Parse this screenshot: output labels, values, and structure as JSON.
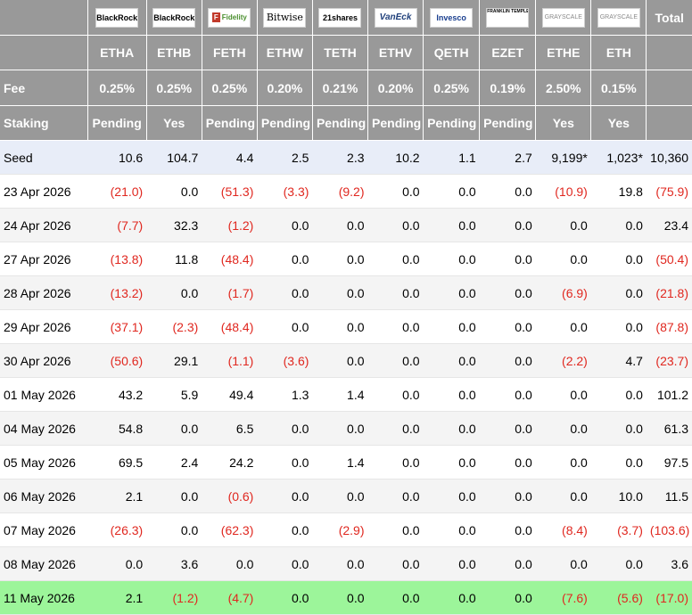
{
  "columns": [
    {
      "issuer": "BlackRock",
      "symbol": "ETHA",
      "fee": "0.25%",
      "staking": "Pending"
    },
    {
      "issuer": "BlackRock",
      "symbol": "ETHB",
      "fee": "0.25%",
      "staking": "Yes"
    },
    {
      "issuer": "Fidelity",
      "symbol": "FETH",
      "fee": "0.25%",
      "staking": "Pending"
    },
    {
      "issuer": "Bitwise",
      "symbol": "ETHW",
      "fee": "0.20%",
      "staking": "Pending"
    },
    {
      "issuer": "21shares",
      "symbol": "TETH",
      "fee": "0.21%",
      "staking": "Pending"
    },
    {
      "issuer": "VanEck",
      "symbol": "ETHV",
      "fee": "0.20%",
      "staking": "Pending"
    },
    {
      "issuer": "Invesco",
      "symbol": "QETH",
      "fee": "0.25%",
      "staking": "Pending"
    },
    {
      "issuer": "FRANKLIN TEMPLETON",
      "symbol": "EZET",
      "fee": "0.19%",
      "staking": "Pending"
    },
    {
      "issuer": "GRAYSCALE",
      "symbol": "ETHE",
      "fee": "2.50%",
      "staking": "Yes"
    },
    {
      "issuer": "GRAYSCALE",
      "symbol": "ETH",
      "fee": "0.15%",
      "staking": "Yes"
    }
  ],
  "header": {
    "total_label": "Total",
    "fee_label": "Fee",
    "staking_label": "Staking"
  },
  "rows": [
    {
      "date": "Seed",
      "values": [
        "10.6",
        "104.7",
        "4.4",
        "2.5",
        "2.3",
        "10.2",
        "1.1",
        "2.7",
        "9,199*",
        "1,023*"
      ],
      "total": "10,360",
      "style": "seed"
    },
    {
      "date": "23 Apr 2026",
      "values": [
        "(21.0)",
        "0.0",
        "(51.3)",
        "(3.3)",
        "(9.2)",
        "0.0",
        "0.0",
        "0.0",
        "(10.9)",
        "19.8"
      ],
      "total": "(75.9)",
      "style": ""
    },
    {
      "date": "24 Apr 2026",
      "values": [
        "(7.7)",
        "32.3",
        "(1.2)",
        "0.0",
        "0.0",
        "0.0",
        "0.0",
        "0.0",
        "0.0",
        "0.0"
      ],
      "total": "23.4",
      "style": "alt"
    },
    {
      "date": "27 Apr 2026",
      "values": [
        "(13.8)",
        "11.8",
        "(48.4)",
        "0.0",
        "0.0",
        "0.0",
        "0.0",
        "0.0",
        "0.0",
        "0.0"
      ],
      "total": "(50.4)",
      "style": ""
    },
    {
      "date": "28 Apr 2026",
      "values": [
        "(13.2)",
        "0.0",
        "(1.7)",
        "0.0",
        "0.0",
        "0.0",
        "0.0",
        "0.0",
        "(6.9)",
        "0.0"
      ],
      "total": "(21.8)",
      "style": "alt"
    },
    {
      "date": "29 Apr 2026",
      "values": [
        "(37.1)",
        "(2.3)",
        "(48.4)",
        "0.0",
        "0.0",
        "0.0",
        "0.0",
        "0.0",
        "0.0",
        "0.0"
      ],
      "total": "(87.8)",
      "style": ""
    },
    {
      "date": "30 Apr 2026",
      "values": [
        "(50.6)",
        "29.1",
        "(1.1)",
        "(3.6)",
        "0.0",
        "0.0",
        "0.0",
        "0.0",
        "(2.2)",
        "4.7"
      ],
      "total": "(23.7)",
      "style": "alt"
    },
    {
      "date": "01 May 2026",
      "values": [
        "43.2",
        "5.9",
        "49.4",
        "1.3",
        "1.4",
        "0.0",
        "0.0",
        "0.0",
        "0.0",
        "0.0"
      ],
      "total": "101.2",
      "style": ""
    },
    {
      "date": "04 May 2026",
      "values": [
        "54.8",
        "0.0",
        "6.5",
        "0.0",
        "0.0",
        "0.0",
        "0.0",
        "0.0",
        "0.0",
        "0.0"
      ],
      "total": "61.3",
      "style": "alt"
    },
    {
      "date": "05 May 2026",
      "values": [
        "69.5",
        "2.4",
        "24.2",
        "0.0",
        "1.4",
        "0.0",
        "0.0",
        "0.0",
        "0.0",
        "0.0"
      ],
      "total": "97.5",
      "style": ""
    },
    {
      "date": "06 May 2026",
      "values": [
        "2.1",
        "0.0",
        "(0.6)",
        "0.0",
        "0.0",
        "0.0",
        "0.0",
        "0.0",
        "0.0",
        "10.0"
      ],
      "total": "11.5",
      "style": "alt"
    },
    {
      "date": "07 May 2026",
      "values": [
        "(26.3)",
        "0.0",
        "(62.3)",
        "0.0",
        "(2.9)",
        "0.0",
        "0.0",
        "0.0",
        "(8.4)",
        "(3.7)"
      ],
      "total": "(103.6)",
      "style": ""
    },
    {
      "date": "08 May 2026",
      "values": [
        "0.0",
        "3.6",
        "0.0",
        "0.0",
        "0.0",
        "0.0",
        "0.0",
        "0.0",
        "0.0",
        "0.0"
      ],
      "total": "3.6",
      "style": "alt"
    },
    {
      "date": "11 May 2026",
      "values": [
        "2.1",
        "(1.2)",
        "(4.7)",
        "0.0",
        "0.0",
        "0.0",
        "0.0",
        "0.0",
        "(7.6)",
        "(5.6)"
      ],
      "total": "(17.0)",
      "style": "latest"
    }
  ],
  "colors": {
    "header_bg": "#999999",
    "negative": "#e0271f",
    "seed_bg": "#e8edf8",
    "alt_bg": "#f4f4f4",
    "latest_bg": "#9cf59a"
  }
}
